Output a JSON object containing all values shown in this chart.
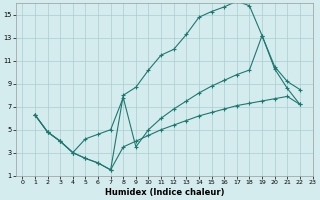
{
  "xlabel": "Humidex (Indice chaleur)",
  "ylabel": "",
  "bg_color": "#d4ecee",
  "grid_color": "#aacdd0",
  "line_color": "#1e7870",
  "xlim": [
    -0.5,
    23
  ],
  "ylim": [
    1,
    16
  ],
  "xticks": [
    0,
    1,
    2,
    3,
    4,
    5,
    6,
    7,
    8,
    9,
    10,
    11,
    12,
    13,
    14,
    15,
    16,
    17,
    18,
    19,
    20,
    21,
    22,
    23
  ],
  "yticks": [
    1,
    3,
    5,
    7,
    9,
    11,
    13,
    15
  ],
  "line1_x": [
    1,
    2,
    3,
    4,
    5,
    6,
    7,
    8,
    9,
    10,
    11,
    12,
    13,
    14,
    15,
    16,
    17,
    18,
    19,
    20,
    21,
    22
  ],
  "line1_y": [
    6.3,
    4.8,
    4.0,
    3.0,
    2.5,
    2.1,
    1.5,
    8.0,
    8.7,
    10.2,
    11.5,
    12.0,
    13.3,
    14.8,
    15.3,
    15.7,
    16.2,
    15.8,
    13.2,
    10.3,
    8.6,
    7.2
  ],
  "line2_x": [
    1,
    2,
    3,
    4,
    5,
    6,
    7,
    8,
    9,
    10,
    11,
    12,
    13,
    14,
    15,
    16,
    17,
    18,
    19,
    20,
    21,
    22
  ],
  "line2_y": [
    6.3,
    4.8,
    4.0,
    3.0,
    2.5,
    2.1,
    1.5,
    3.5,
    4.0,
    4.5,
    5.0,
    5.4,
    5.8,
    6.2,
    6.5,
    6.8,
    7.1,
    7.3,
    7.5,
    7.7,
    7.9,
    7.2
  ],
  "line3_x": [
    1,
    2,
    3,
    4,
    5,
    6,
    7,
    8,
    9,
    10,
    11,
    12,
    13,
    14,
    15,
    16,
    17,
    18,
    19,
    20,
    21,
    22
  ],
  "line3_y": [
    6.3,
    4.8,
    4.0,
    3.0,
    4.2,
    4.6,
    5.0,
    7.8,
    3.5,
    5.0,
    6.0,
    6.8,
    7.5,
    8.2,
    8.8,
    9.3,
    9.8,
    10.2,
    13.2,
    10.5,
    9.2,
    8.5
  ],
  "marker": "+",
  "markersize": 3.5,
  "linewidth": 0.8,
  "tick_fontsize": 4.5,
  "xlabel_fontsize": 6.0
}
